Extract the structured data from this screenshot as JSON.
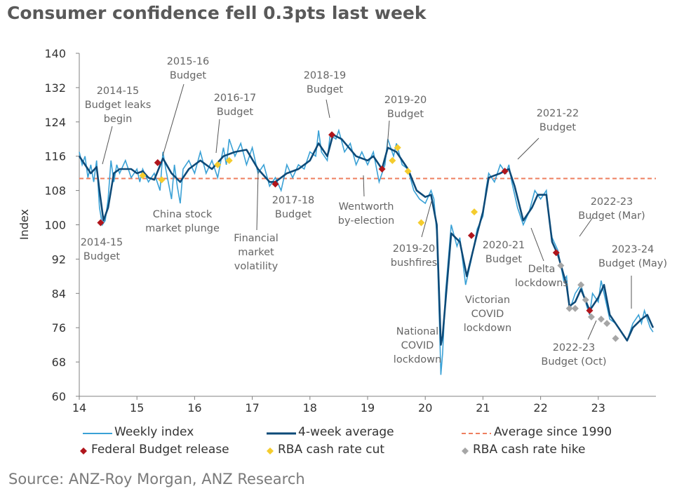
{
  "chart_data": {
    "type": "line",
    "title": "Consumer confidence fell 0.3pts last week",
    "source": "Source: ANZ-Roy Morgan, ANZ Research",
    "ylabel": "Index",
    "xlabel": "",
    "ylim": [
      60,
      140
    ],
    "xlim": [
      14,
      24
    ],
    "yticks": [
      60,
      68,
      76,
      84,
      92,
      100,
      108,
      116,
      124,
      132,
      140
    ],
    "xticks": [
      14,
      15,
      16,
      17,
      18,
      19,
      20,
      21,
      22,
      23
    ],
    "average_since_1990": 110.8,
    "colors": {
      "weekly": "#3aa1d6",
      "avg4": "#0d4a78",
      "average": "#ee7f5f",
      "budget": "#b0151c",
      "cut": "#f4cc2e",
      "hike": "#a6a6a6"
    },
    "series": [
      {
        "name": "Weekly index",
        "points": [
          [
            14,
            117
          ],
          [
            14.05,
            114
          ],
          [
            14.1,
            116
          ],
          [
            14.15,
            111
          ],
          [
            14.2,
            114
          ],
          [
            14.25,
            110
          ],
          [
            14.3,
            115
          ],
          [
            14.35,
            104
          ],
          [
            14.4,
            100
          ],
          [
            14.45,
            101
          ],
          [
            14.5,
            106
          ],
          [
            14.55,
            115
          ],
          [
            14.6,
            110
          ],
          [
            14.65,
            114
          ],
          [
            14.7,
            112
          ],
          [
            14.8,
            115
          ],
          [
            14.9,
            111
          ],
          [
            15,
            113
          ],
          [
            15.05,
            110
          ],
          [
            15.1,
            113
          ],
          [
            15.2,
            110
          ],
          [
            15.3,
            112
          ],
          [
            15.4,
            108
          ],
          [
            15.45,
            117
          ],
          [
            15.5,
            113
          ],
          [
            15.6,
            106
          ],
          [
            15.65,
            114
          ],
          [
            15.7,
            109
          ],
          [
            15.75,
            105
          ],
          [
            15.8,
            113
          ],
          [
            15.9,
            115
          ],
          [
            16,
            112
          ],
          [
            16.1,
            117
          ],
          [
            16.2,
            112
          ],
          [
            16.3,
            115
          ],
          [
            16.4,
            111
          ],
          [
            16.5,
            118
          ],
          [
            16.55,
            114
          ],
          [
            16.6,
            120
          ],
          [
            16.7,
            116
          ],
          [
            16.8,
            119
          ],
          [
            16.9,
            114
          ],
          [
            17,
            118
          ],
          [
            17.1,
            112
          ],
          [
            17.2,
            114
          ],
          [
            17.3,
            109
          ],
          [
            17.4,
            111
          ],
          [
            17.5,
            108
          ],
          [
            17.6,
            114
          ],
          [
            17.7,
            111
          ],
          [
            17.8,
            114
          ],
          [
            17.9,
            113
          ],
          [
            18,
            117
          ],
          [
            18.1,
            116
          ],
          [
            18.15,
            122
          ],
          [
            18.2,
            117
          ],
          [
            18.3,
            115
          ],
          [
            18.35,
            121
          ],
          [
            18.45,
            120
          ],
          [
            18.5,
            122
          ],
          [
            18.6,
            117
          ],
          [
            18.7,
            119
          ],
          [
            18.8,
            114
          ],
          [
            18.9,
            117
          ],
          [
            19,
            114
          ],
          [
            19.1,
            117
          ],
          [
            19.2,
            110
          ],
          [
            19.3,
            114
          ],
          [
            19.35,
            120
          ],
          [
            19.45,
            116
          ],
          [
            19.5,
            119
          ],
          [
            19.6,
            114
          ],
          [
            19.7,
            113
          ],
          [
            19.8,
            108
          ],
          [
            19.9,
            106
          ],
          [
            20,
            105
          ],
          [
            20.1,
            108
          ],
          [
            20.15,
            106
          ],
          [
            20.2,
            98
          ],
          [
            20.25,
            75
          ],
          [
            20.27,
            65
          ],
          [
            20.3,
            70
          ],
          [
            20.35,
            84
          ],
          [
            20.45,
            100
          ],
          [
            20.55,
            95
          ],
          [
            20.6,
            97
          ],
          [
            20.7,
            86
          ],
          [
            20.8,
            92
          ],
          [
            20.9,
            99
          ],
          [
            21,
            102
          ],
          [
            21.05,
            108
          ],
          [
            21.1,
            112
          ],
          [
            21.2,
            110
          ],
          [
            21.3,
            114
          ],
          [
            21.4,
            112
          ],
          [
            21.45,
            114
          ],
          [
            21.5,
            110
          ],
          [
            21.6,
            104
          ],
          [
            21.7,
            100
          ],
          [
            21.8,
            103
          ],
          [
            21.9,
            108
          ],
          [
            22,
            106
          ],
          [
            22.1,
            108
          ],
          [
            22.15,
            101
          ],
          [
            22.2,
            97
          ],
          [
            22.3,
            94
          ],
          [
            22.4,
            87
          ],
          [
            22.45,
            88
          ],
          [
            22.5,
            80
          ],
          [
            22.6,
            84
          ],
          [
            22.7,
            86
          ],
          [
            22.8,
            81
          ],
          [
            22.85,
            79
          ],
          [
            22.9,
            84
          ],
          [
            23,
            82
          ],
          [
            23.05,
            87
          ],
          [
            23.1,
            84
          ],
          [
            23.2,
            78
          ],
          [
            23.3,
            77
          ],
          [
            23.4,
            75
          ],
          [
            23.5,
            73
          ],
          [
            23.6,
            77
          ],
          [
            23.7,
            79
          ],
          [
            23.75,
            77
          ],
          [
            23.8,
            80
          ],
          [
            23.9,
            76
          ],
          [
            23.95,
            75
          ]
        ]
      },
      {
        "name": "4-week average",
        "points": [
          [
            14,
            116
          ],
          [
            14.1,
            114
          ],
          [
            14.2,
            112
          ],
          [
            14.3,
            113.5
          ],
          [
            14.35,
            108
          ],
          [
            14.42,
            101
          ],
          [
            14.5,
            104
          ],
          [
            14.6,
            112
          ],
          [
            14.7,
            113
          ],
          [
            14.9,
            113
          ],
          [
            15,
            112
          ],
          [
            15.1,
            112.5
          ],
          [
            15.2,
            111
          ],
          [
            15.3,
            110.5
          ],
          [
            15.45,
            115.5
          ],
          [
            15.6,
            112
          ],
          [
            15.75,
            110
          ],
          [
            15.9,
            113
          ],
          [
            16.1,
            115
          ],
          [
            16.3,
            113
          ],
          [
            16.5,
            116
          ],
          [
            16.7,
            117
          ],
          [
            16.9,
            117.5
          ],
          [
            17.1,
            113
          ],
          [
            17.3,
            110
          ],
          [
            17.4,
            110
          ],
          [
            17.6,
            112
          ],
          [
            17.8,
            113
          ],
          [
            18,
            115
          ],
          [
            18.15,
            119
          ],
          [
            18.3,
            116
          ],
          [
            18.4,
            121
          ],
          [
            18.55,
            120
          ],
          [
            18.8,
            116
          ],
          [
            19,
            115
          ],
          [
            19.1,
            116
          ],
          [
            19.25,
            113
          ],
          [
            19.35,
            118
          ],
          [
            19.5,
            117
          ],
          [
            19.7,
            113
          ],
          [
            19.85,
            108
          ],
          [
            20,
            106.5
          ],
          [
            20.1,
            107
          ],
          [
            20.2,
            100
          ],
          [
            20.27,
            72
          ],
          [
            20.3,
            74
          ],
          [
            20.45,
            98
          ],
          [
            20.6,
            96
          ],
          [
            20.72,
            88
          ],
          [
            20.9,
            98
          ],
          [
            21,
            103
          ],
          [
            21.1,
            111
          ],
          [
            21.2,
            111.5
          ],
          [
            21.3,
            112
          ],
          [
            21.45,
            113
          ],
          [
            21.55,
            109
          ],
          [
            21.7,
            101
          ],
          [
            21.85,
            104
          ],
          [
            21.95,
            107
          ],
          [
            22.1,
            107
          ],
          [
            22.2,
            96
          ],
          [
            22.3,
            93
          ],
          [
            22.45,
            86
          ],
          [
            22.5,
            81
          ],
          [
            22.6,
            82
          ],
          [
            22.7,
            85
          ],
          [
            22.85,
            80
          ],
          [
            23,
            83
          ],
          [
            23.1,
            86
          ],
          [
            23.2,
            79
          ],
          [
            23.35,
            76
          ],
          [
            23.5,
            73
          ],
          [
            23.6,
            76
          ],
          [
            23.75,
            78
          ],
          [
            23.85,
            79
          ],
          [
            23.95,
            76
          ]
        ]
      }
    ],
    "markers": {
      "budget": [
        [
          14.37,
          100.5
        ],
        [
          15.36,
          114.5
        ],
        [
          17.4,
          109.5
        ],
        [
          18.38,
          121
        ],
        [
          19.25,
          113
        ],
        [
          20.8,
          97.5
        ],
        [
          21.38,
          112.5
        ],
        [
          22.27,
          93.5
        ],
        [
          22.85,
          80
        ]
      ],
      "cut": [
        [
          15.1,
          111.5
        ],
        [
          15.43,
          110.5
        ],
        [
          16.4,
          114
        ],
        [
          16.6,
          115
        ],
        [
          19.43,
          115
        ],
        [
          19.52,
          118
        ],
        [
          19.7,
          112.5
        ],
        [
          19.93,
          100.5
        ],
        [
          20.85,
          103
        ]
      ],
      "hike": [
        [
          22.35,
          90.5
        ],
        [
          22.5,
          80.5
        ],
        [
          22.6,
          80.5
        ],
        [
          22.7,
          86
        ],
        [
          22.78,
          82.5
        ],
        [
          22.88,
          78.5
        ],
        [
          23.05,
          78
        ],
        [
          23.15,
          77
        ],
        [
          23.3,
          73.5
        ]
      ]
    },
    "legend": {
      "weekly": "Weekly index",
      "avg4": "4-week average",
      "average": "Average since 1990",
      "budget": "Federal Budget release",
      "cut": "RBA cash rate cut",
      "hike": "RBA cash rate hike"
    },
    "annotations": {
      "a1": [
        "2014-15",
        "Budget leaks",
        "begin"
      ],
      "a2": [
        "2015-16",
        "Budget"
      ],
      "a3": [
        "2016-17",
        "Budget"
      ],
      "a4": [
        "2018-19",
        "Budget"
      ],
      "a5": [
        "2019-20",
        "Budget"
      ],
      "a6": [
        "2021-22",
        "Budget"
      ],
      "a7": [
        "2014-15",
        "Budget"
      ],
      "a8": [
        "China stock",
        "market plunge"
      ],
      "a9": [
        "Financial",
        "market",
        "volatility"
      ],
      "a10": [
        "2017-18",
        "Budget"
      ],
      "a11": [
        "Wentworth",
        "by-election"
      ],
      "a12": [
        "2019-20",
        "bushfires"
      ],
      "a13": [
        "2020-21",
        "Budget"
      ],
      "a14": [
        "National",
        "COVID",
        "lockdown"
      ],
      "a15": [
        "Victorian",
        "COVID",
        "lockdown"
      ],
      "a16": [
        "Delta",
        "lockdowns"
      ],
      "a17": [
        "2022-23",
        "Budget (Mar)"
      ],
      "a18": [
        "2023-24",
        "Budget (May)"
      ],
      "a19": [
        "2022-23",
        "Budget (Oct)"
      ]
    }
  }
}
